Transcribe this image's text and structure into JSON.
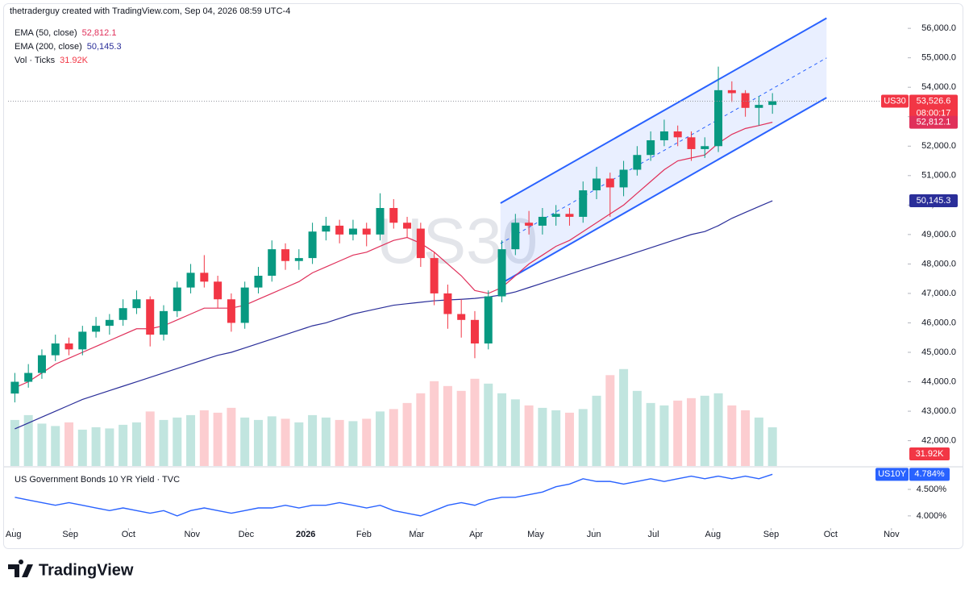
{
  "chart_data": {
    "type": "candlestick",
    "title": "thetraderguy created with TradingView.com, Sep 04, 2026 08:59 UTC-4",
    "symbol": "US30",
    "last_label": "53,526.6",
    "countdown": "08:00:17",
    "up_color": "#089981",
    "down_color": "#f23645",
    "xlim": [
      -0.5,
      66
    ],
    "xticks": [
      {
        "value": -0.1,
        "label": "Aug"
      },
      {
        "value": 4.1,
        "label": "Sep"
      },
      {
        "value": 8.4,
        "label": "Oct"
      },
      {
        "value": 13.1,
        "label": "Nov"
      },
      {
        "value": 17.1,
        "label": "Dec"
      },
      {
        "value": 21.5,
        "label": "2026"
      },
      {
        "value": 25.8,
        "label": "Feb"
      },
      {
        "value": 29.7,
        "label": "Mar"
      },
      {
        "value": 34.1,
        "label": "Apr"
      },
      {
        "value": 38.5,
        "label": "May"
      },
      {
        "value": 42.8,
        "label": "Jun"
      },
      {
        "value": 47.2,
        "label": "Jul"
      },
      {
        "value": 51.6,
        "label": "Aug"
      },
      {
        "value": 55.9,
        "label": "Sep"
      },
      {
        "value": 60.3,
        "label": "Oct"
      },
      {
        "value": 64.8,
        "label": "Nov"
      }
    ],
    "ylim": [
      41140,
      56360
    ],
    "yticks": [
      {
        "value": 42000,
        "label": "42,000.0"
      },
      {
        "value": 43000,
        "label": "43,000.0"
      },
      {
        "value": 44000,
        "label": "44,000.0"
      },
      {
        "value": 45000,
        "label": "45,000.0"
      },
      {
        "value": 46000,
        "label": "46,000.0"
      },
      {
        "value": 47000,
        "label": "47,000.0"
      },
      {
        "value": 48000,
        "label": "48,000.0"
      },
      {
        "value": 49000,
        "label": "49,000.0"
      },
      {
        "value": 50000,
        "label": "50,000.0"
      },
      {
        "value": 51000,
        "label": "51,000.0"
      },
      {
        "value": 52000,
        "label": "52,000.0"
      },
      {
        "value": 53000,
        "label": "53,000.0"
      },
      {
        "value": 54000,
        "label": "54,000.0"
      },
      {
        "value": 55000,
        "label": "55,000.0"
      },
      {
        "value": 56000,
        "label": "56,000.0"
      }
    ],
    "open": [
      43600,
      44000,
      44300,
      44900,
      45300,
      45100,
      45700,
      45900,
      46100,
      46500,
      46800,
      45600,
      46400,
      47200,
      47700,
      47400,
      46800,
      46000,
      47200,
      47600,
      48500,
      48100,
      48200,
      49100,
      49300,
      49000,
      49200,
      49000,
      49900,
      49400,
      49200,
      48200,
      47000,
      46300,
      46100,
      45300,
      46900,
      48500,
      49400,
      49300,
      49600,
      49700,
      49600,
      50500,
      50900,
      50600,
      51200,
      51700,
      52200,
      52500,
      52300,
      51900,
      52000,
      53900,
      53800,
      53300,
      53400
    ],
    "high": [
      44300,
      44600,
      45100,
      45600,
      45500,
      45900,
      46200,
      46300,
      46800,
      47100,
      46900,
      46600,
      47400,
      48000,
      48300,
      47600,
      47000,
      47400,
      47900,
      48800,
      48700,
      48500,
      49400,
      49600,
      49500,
      49500,
      49400,
      50400,
      50200,
      49600,
      49400,
      48400,
      47300,
      46800,
      46400,
      47100,
      48800,
      49700,
      49800,
      49900,
      50000,
      49900,
      50800,
      51300,
      51100,
      51500,
      52000,
      52500,
      52900,
      52700,
      52500,
      52300,
      54700,
      54200,
      53900,
      53700,
      53800
    ],
    "low": [
      43300,
      43800,
      44100,
      44700,
      44900,
      44900,
      45500,
      45600,
      45900,
      46300,
      45200,
      45400,
      46200,
      47000,
      47200,
      46500,
      45700,
      45800,
      47000,
      47400,
      47800,
      47800,
      48000,
      48800,
      48700,
      48800,
      48600,
      48800,
      49200,
      48900,
      47900,
      46600,
      45800,
      45500,
      44800,
      45100,
      46700,
      48300,
      49000,
      49000,
      49300,
      49300,
      49400,
      50200,
      49600,
      50300,
      51000,
      51500,
      52000,
      52000,
      51500,
      51600,
      51800,
      53500,
      53000,
      52700,
      53100
    ],
    "close": [
      44000,
      44300,
      44900,
      45300,
      45100,
      45700,
      45900,
      46100,
      46500,
      46800,
      45600,
      46400,
      47200,
      47700,
      47400,
      46800,
      46000,
      47200,
      47600,
      48500,
      48100,
      48200,
      49100,
      49300,
      49000,
      49200,
      49000,
      49900,
      49400,
      49200,
      48200,
      47000,
      46300,
      46100,
      45300,
      46900,
      48500,
      49400,
      49300,
      49600,
      49700,
      49600,
      50500,
      50900,
      50600,
      51200,
      51700,
      52200,
      52500,
      52300,
      51900,
      52000,
      53900,
      53800,
      53300,
      53400,
      53526.6
    ],
    "series": [
      {
        "name": "EMA (50, close)",
        "color": "#e0305a",
        "last_label": "52,812.1",
        "values": [
          43800,
          44000,
          44300,
          44600,
          44800,
          45000,
          45200,
          45400,
          45600,
          45800,
          45800,
          45900,
          46100,
          46300,
          46500,
          46500,
          46500,
          46600,
          46800,
          47000,
          47200,
          47400,
          47700,
          47900,
          48100,
          48300,
          48400,
          48600,
          48800,
          48900,
          48700,
          48400,
          48000,
          47600,
          47100,
          47000,
          47200,
          47600,
          48000,
          48300,
          48600,
          48800,
          49100,
          49400,
          49700,
          50000,
          50400,
          50800,
          51200,
          51500,
          51600,
          51700,
          52100,
          52400,
          52600,
          52700,
          52812.1
        ]
      },
      {
        "name": "EMA (200, close)",
        "color": "#2a2e99",
        "last_label": "50,145.3",
        "values": [
          42400,
          42600,
          42800,
          43000,
          43200,
          43400,
          43550,
          43700,
          43850,
          44000,
          44150,
          44300,
          44450,
          44600,
          44750,
          44900,
          45000,
          45150,
          45300,
          45450,
          45600,
          45750,
          45900,
          46000,
          46150,
          46300,
          46400,
          46500,
          46600,
          46650,
          46700,
          46750,
          46780,
          46800,
          46830,
          46880,
          46950,
          47050,
          47200,
          47350,
          47500,
          47650,
          47800,
          47950,
          48100,
          48250,
          48400,
          48550,
          48700,
          48850,
          49000,
          49100,
          49300,
          49550,
          49750,
          49950,
          50145.3
        ]
      }
    ],
    "volume": {
      "name": "Vol · Ticks",
      "last_label": "31.92K",
      "ylim": [
        0,
        370000
      ],
      "values": [
        38000,
        42000,
        35000,
        33000,
        36000,
        30000,
        32000,
        31000,
        34000,
        36000,
        45000,
        38000,
        40000,
        42000,
        46000,
        44000,
        48000,
        40000,
        38000,
        41000,
        39000,
        36000,
        42000,
        40000,
        38000,
        37000,
        39000,
        45000,
        47000,
        52000,
        60000,
        70000,
        66000,
        62000,
        72000,
        68000,
        60000,
        55000,
        50000,
        48000,
        46000,
        44000,
        47000,
        58000,
        75000,
        80000,
        62000,
        52000,
        50000,
        54000,
        56000,
        58000,
        60000,
        50000,
        46000,
        40000,
        31920
      ]
    },
    "channel": {
      "color": "#2962ff",
      "x": [
        35.9,
        60
      ],
      "upper": [
        50063,
        56345
      ],
      "lower": [
        47327,
        53647
      ]
    },
    "yield": {
      "title": "US Government Bonds 10 YR Yield · TVC",
      "symbol": "US10Y",
      "color": "#2962ff",
      "last_label": "4.784%",
      "ylim": [
        3.77,
        4.88
      ],
      "yticks": [
        {
          "value": 4.5,
          "label": "4.500%"
        },
        {
          "value": 4.0,
          "label": "4.000%"
        }
      ],
      "values": [
        4.35,
        4.3,
        4.25,
        4.2,
        4.25,
        4.2,
        4.15,
        4.1,
        4.15,
        4.1,
        4.05,
        4.1,
        4.0,
        4.1,
        4.15,
        4.1,
        4.05,
        4.1,
        4.15,
        4.15,
        4.2,
        4.15,
        4.2,
        4.2,
        4.25,
        4.2,
        4.15,
        4.2,
        4.1,
        4.05,
        4.0,
        4.1,
        4.2,
        4.25,
        4.2,
        4.3,
        4.35,
        4.35,
        4.4,
        4.45,
        4.55,
        4.6,
        4.7,
        4.65,
        4.65,
        4.6,
        4.65,
        4.7,
        4.65,
        4.7,
        4.75,
        4.7,
        4.75,
        4.7,
        4.75,
        4.7,
        4.784
      ]
    },
    "brand": "TradingView"
  }
}
